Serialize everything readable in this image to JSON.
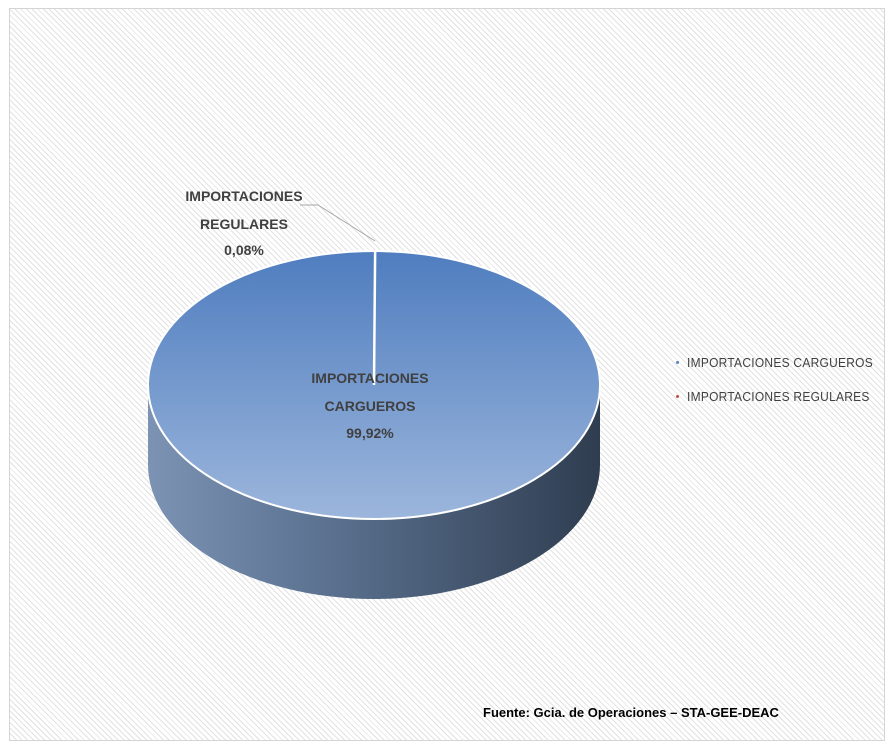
{
  "chart_data": {
    "type": "pie",
    "title": "",
    "categories": [
      "IMPORTACIONES CARGUEROS",
      "IMPORTACIONES REGULARES"
    ],
    "values": [
      99.92,
      0.08
    ],
    "unit": "%",
    "colors": [
      "#5b85c0",
      "#c0504d"
    ],
    "data_labels": [
      {
        "lines": [
          "IMPORTACIONES",
          "CARGUEROS"
        ],
        "value": "99,92%"
      },
      {
        "lines": [
          "IMPORTACIONES",
          "REGULARES"
        ],
        "value": "0,08%"
      }
    ],
    "legend": {
      "position": "right",
      "items": [
        "IMPORTACIONES CARGUEROS",
        "IMPORTACIONES REGULARES"
      ]
    },
    "style": "3d"
  },
  "source": "Fuente: Gcia. de Operaciones – STA-GEE-DEAC"
}
